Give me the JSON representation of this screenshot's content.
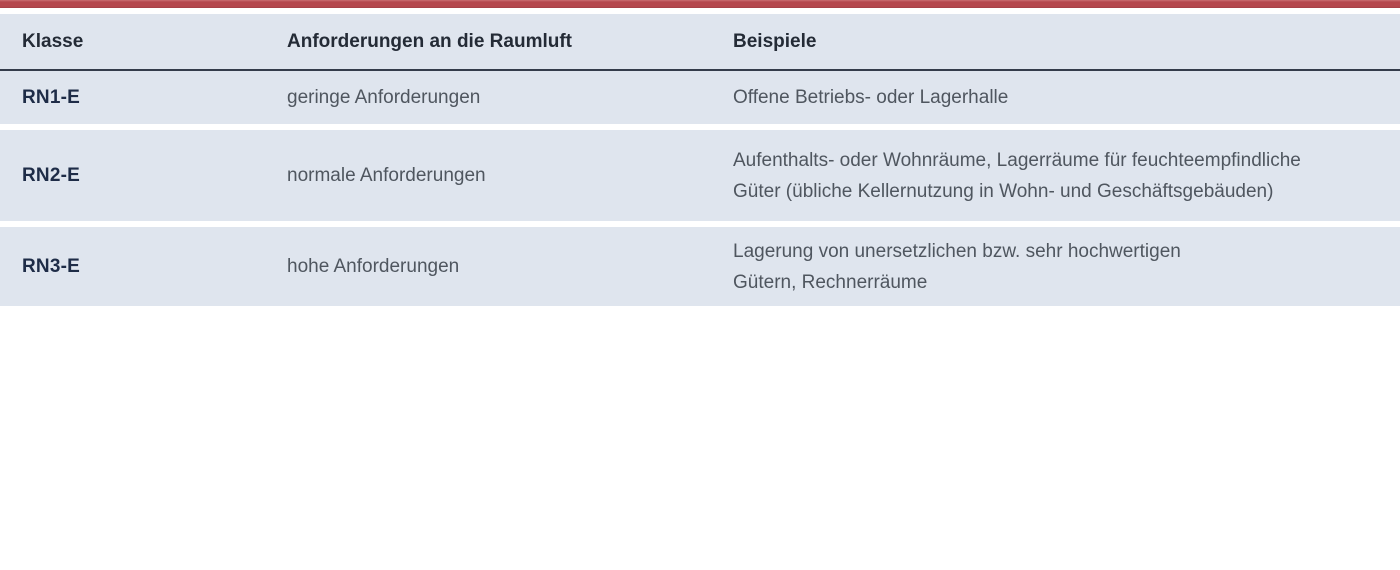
{
  "page": {
    "background": "#ffffff",
    "accent_bar_color": "#b5484e"
  },
  "colors": {
    "row_background": "#dfe5ee",
    "header_rule": "#343c4b",
    "header_text": "#242b36",
    "class_label_text": "#1e2c47",
    "body_text": "#4f565f"
  },
  "table": {
    "header": {
      "klasse": "Klasse",
      "anforderungen": "Anforderungen an die Raumluft",
      "beispiele": "Beispiele"
    },
    "rows": [
      {
        "klasse": "RN1-E",
        "anforderungen": "geringe Anforderungen",
        "beispiele": "Offene Betriebs- oder Lagerhalle"
      },
      {
        "klasse": "RN2-E",
        "anforderungen": "normale Anforderungen",
        "beispiele": "Aufenthalts- oder Wohnräume, Lagerräume für feuchteempfindliche\nGüter (übliche Kellernutzung in Wohn- und Geschäftsgebäuden)"
      },
      {
        "klasse": "RN3-E",
        "anforderungen": "hohe Anforderungen",
        "beispiele": "Lagerung von unersetzlichen bzw. sehr hochwertigen\nGütern, Rechnerräume"
      }
    ]
  }
}
